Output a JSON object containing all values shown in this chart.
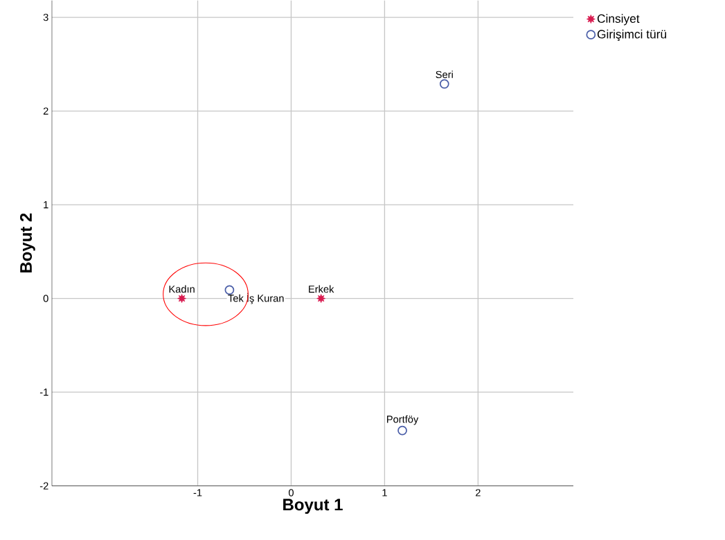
{
  "chart_data": {
    "type": "scatter",
    "xlabel": "Boyut 1",
    "ylabel": "Boyut 2",
    "xlim": [
      -2.56,
      3.02
    ],
    "ylim": [
      -2,
      3.18
    ],
    "xticks": [
      -1,
      0,
      1,
      2
    ],
    "yticks": [
      -2,
      -1,
      0,
      1,
      2,
      3
    ],
    "grid": true,
    "legend": "top right",
    "series": [
      {
        "name": "Cinsiyet",
        "color": "#d81b4f",
        "marker": "star",
        "x": [
          -1.17,
          0.32
        ],
        "values": [
          0,
          0
        ]
      },
      {
        "name": "Girişimci türü",
        "color": "#4a5ea8",
        "marker": "circle",
        "x": [
          -0.66,
          1.64,
          1.19
        ],
        "values": [
          0.09,
          2.29,
          -1.41
        ]
      }
    ],
    "annotations": [
      {
        "text": "Kadın",
        "x": -1.17,
        "y": 0
      },
      {
        "text": "Tek İş Kuran",
        "x": -0.66,
        "y": 0.09
      },
      {
        "text": "Erkek",
        "x": 0.32,
        "y": 0
      },
      {
        "text": "Seri",
        "x": 1.64,
        "y": 2.29
      },
      {
        "text": "Portföy",
        "x": 1.19,
        "y": -1.41
      }
    ]
  }
}
